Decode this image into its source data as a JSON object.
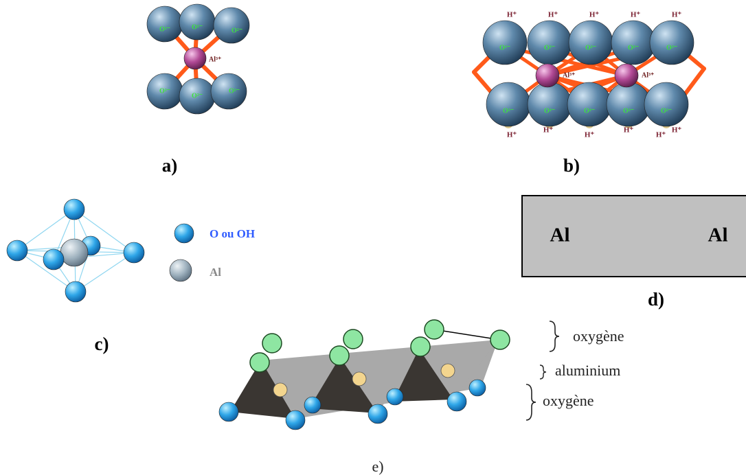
{
  "a": {
    "oxygen": [
      "O²⁻",
      "O²⁻",
      "O²⁻",
      "O²⁻",
      "O²⁻",
      "O²⁻"
    ],
    "aluminium": "Al³⁺",
    "label": "a)"
  },
  "b": {
    "hydrogen_top": [
      "H⁺",
      "H⁺",
      "H⁺",
      "H⁺",
      "H⁺"
    ],
    "oxygen_top": [
      "O²⁻",
      "O²⁻",
      "O²⁻",
      "O²⁻",
      "O²⁻"
    ],
    "aluminium": [
      "Al³⁺",
      "Al³⁺"
    ],
    "oxygen_bottom": [
      "O²⁻",
      "O²⁻",
      "O²⁻",
      "O²⁻",
      "O²⁻"
    ],
    "hydrogen_bottom": [
      "H⁺",
      "H⁺",
      "H⁺",
      "H⁺",
      "H⁺",
      "H⁺"
    ],
    "label": "b)"
  },
  "c": {
    "legend": [
      "O ou OH",
      "Al"
    ],
    "label": "c)"
  },
  "d": {
    "atoms": [
      "Al",
      "Al"
    ],
    "label": "d)"
  },
  "e": {
    "layers": [
      "oxygène",
      "aluminium",
      "oxygène"
    ],
    "label": "e)"
  }
}
